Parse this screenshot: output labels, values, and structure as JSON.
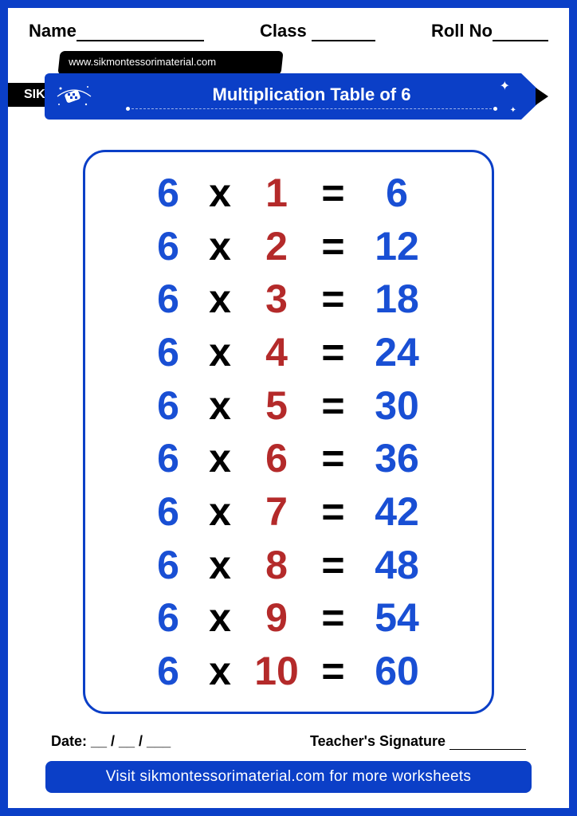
{
  "colors": {
    "brand_blue": "#0b3fc7",
    "text_blue": "#194fd4",
    "text_red": "#b42a2a",
    "text_black": "#000000",
    "bg": "#ffffff"
  },
  "header": {
    "name_label": "Name",
    "class_label": "Class",
    "roll_label": "Roll No"
  },
  "branding": {
    "url": "www.sikmontessorimaterial.com",
    "logo_text": "SIK",
    "title": "Multiplication Table of 6"
  },
  "table": {
    "base": 6,
    "operator": "x",
    "equals": "=",
    "font_size": 50,
    "rows": [
      {
        "a": "6",
        "b": "1",
        "r": "6"
      },
      {
        "a": "6",
        "b": "2",
        "r": "12"
      },
      {
        "a": "6",
        "b": "3",
        "r": "18"
      },
      {
        "a": "6",
        "b": "4",
        "r": "24"
      },
      {
        "a": "6",
        "b": "5",
        "r": "30"
      },
      {
        "a": "6",
        "b": "6",
        "r": "36"
      },
      {
        "a": "6",
        "b": "7",
        "r": "42"
      },
      {
        "a": "6",
        "b": "8",
        "r": "48"
      },
      {
        "a": "6",
        "b": "9",
        "r": "54"
      },
      {
        "a": "6",
        "b": "10",
        "r": "60"
      }
    ]
  },
  "footer": {
    "date_label": "Date: __ / __ / ___",
    "signature_label": "Teacher's Signature"
  },
  "cta": "Visit sikmontessorimaterial.com for more worksheets"
}
